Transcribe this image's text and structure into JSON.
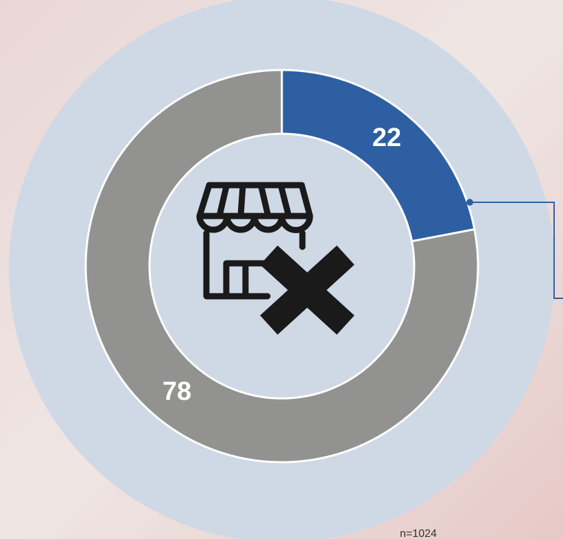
{
  "chart_data": {
    "type": "pie",
    "donut": true,
    "values": [
      22,
      78
    ],
    "colors": [
      "#2e5fa3",
      "#929391"
    ],
    "note": "n=1024"
  }
}
